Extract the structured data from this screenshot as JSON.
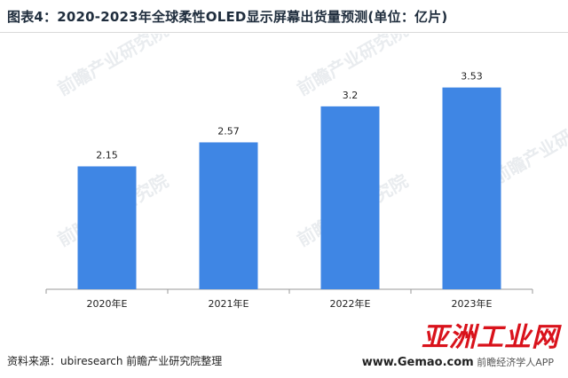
{
  "title": "图表4：2020-2023年全球柔性OLED显示屏幕出货量预测(单位：亿片)",
  "source": "资料来源：ubiresearch 前瞻产业研究院整理",
  "watermark": {
    "text": "前瞻产业研究院",
    "stamp_text": "亚洲工业网",
    "stamp_url": "www.Gemao.com",
    "stamp_app": "前瞻经济学人APP"
  },
  "colors": {
    "bar": "#3f86e4",
    "axis": "#999999",
    "label": "#222222",
    "stamp": "#d9121b"
  },
  "chart_data": {
    "type": "bar",
    "title": "图表4：2020-2023年全球柔性OLED显示屏幕出货量预测(单位：亿片)",
    "categories": [
      "2020年E",
      "2021年E",
      "2022年E",
      "2023年E"
    ],
    "values": [
      2.15,
      2.57,
      3.2,
      3.53
    ],
    "value_labels": [
      "2.15",
      "2.57",
      "3.2",
      "3.53"
    ],
    "xlabel": "",
    "ylabel": "",
    "ylim": [
      0,
      3.85
    ],
    "grid": false,
    "legend": "none"
  }
}
